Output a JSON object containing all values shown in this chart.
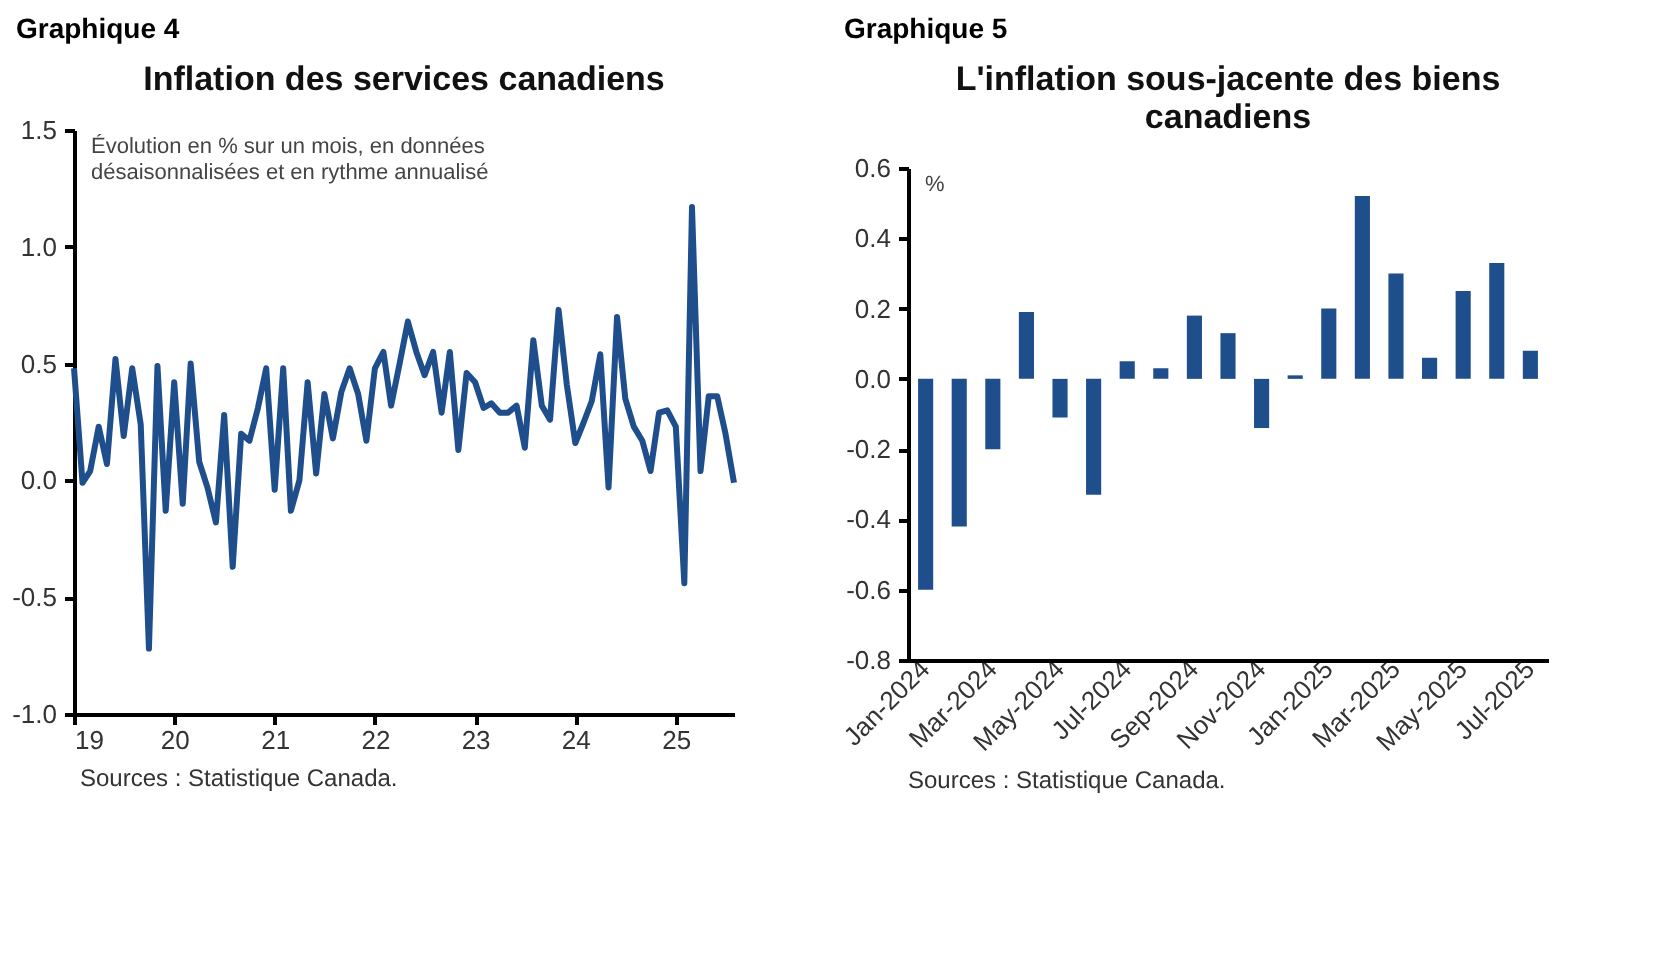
{
  "chart_data": [
    {
      "type": "line",
      "title": "Inflation des services canadiens",
      "ylabel": "Évolution en % sur un mois, en données désaisonnalisées et en rythme annualisé",
      "annotations": [
        "Graphique 4",
        "Sources : Statistique Canada."
      ],
      "x": [
        "2019-01",
        "2019-02",
        "2019-03",
        "2019-04",
        "2019-05",
        "2019-06",
        "2019-07",
        "2019-08",
        "2019-09",
        "2019-10",
        "2019-11",
        "2019-12",
        "2020-01",
        "2020-02",
        "2020-03",
        "2020-04",
        "2020-05",
        "2020-06",
        "2020-07",
        "2020-08",
        "2020-09",
        "2020-10",
        "2020-11",
        "2020-12",
        "2021-01",
        "2021-02",
        "2021-03",
        "2021-04",
        "2021-05",
        "2021-06",
        "2021-07",
        "2021-08",
        "2021-09",
        "2021-10",
        "2021-11",
        "2021-12",
        "2022-01",
        "2022-02",
        "2022-03",
        "2022-04",
        "2022-05",
        "2022-06",
        "2022-07",
        "2022-08",
        "2022-09",
        "2022-10",
        "2022-11",
        "2022-12",
        "2023-01",
        "2023-02",
        "2023-03",
        "2023-04",
        "2023-05",
        "2023-06",
        "2023-07",
        "2023-08",
        "2023-09",
        "2023-10",
        "2023-11",
        "2023-12",
        "2024-01",
        "2024-02",
        "2024-03",
        "2024-04",
        "2024-05",
        "2024-06",
        "2024-07",
        "2024-08",
        "2024-09",
        "2024-10",
        "2024-11",
        "2024-12",
        "2025-01",
        "2025-02",
        "2025-03",
        "2025-04",
        "2025-05",
        "2025-06",
        "2025-07",
        "2025-08"
      ],
      "series": [
        {
          "color": "#1f4e8c",
          "values": [
            0.48,
            -0.01,
            0.04,
            0.23,
            0.07,
            0.52,
            0.19,
            0.48,
            0.24,
            -0.72,
            0.49,
            -0.13,
            0.42,
            -0.1,
            0.5,
            0.08,
            -0.03,
            -0.18,
            0.28,
            -0.37,
            0.2,
            0.17,
            0.31,
            0.48,
            -0.04,
            0.48,
            -0.13,
            0.0,
            0.42,
            0.03,
            0.37,
            0.18,
            0.38,
            0.48,
            0.37,
            0.17,
            0.48,
            0.55,
            0.32,
            0.5,
            0.68,
            0.55,
            0.45,
            0.55,
            0.29,
            0.55,
            0.13,
            0.46,
            0.42,
            0.31,
            0.33,
            0.29,
            0.29,
            0.32,
            0.14,
            0.6,
            0.32,
            0.26,
            0.73,
            0.41,
            0.16,
            0.25,
            0.34,
            0.54,
            -0.03,
            0.7,
            0.35,
            0.23,
            0.17,
            0.04,
            0.29,
            0.3,
            0.23,
            -0.44,
            1.17,
            0.04,
            0.36,
            0.36,
            0.2,
            -0.01
          ]
        }
      ],
      "xlim": [
        "2019-01",
        "2025-08"
      ],
      "xticks": [
        {
          "value": "2019-01",
          "label": "19"
        },
        {
          "value": "2020-01",
          "label": "20"
        },
        {
          "value": "2021-01",
          "label": "21"
        },
        {
          "value": "2022-01",
          "label": "22"
        },
        {
          "value": "2023-01",
          "label": "23"
        },
        {
          "value": "2024-01",
          "label": "24"
        },
        {
          "value": "2025-01",
          "label": "25"
        }
      ],
      "ylim": [
        -1,
        1.5
      ],
      "yticks": [
        {
          "value": -1,
          "label": "-1.0"
        },
        {
          "value": -0.5,
          "label": "-0.5"
        },
        {
          "value": 0,
          "label": "0.0"
        },
        {
          "value": 0.5,
          "label": "0.5"
        },
        {
          "value": 1,
          "label": "1.0"
        },
        {
          "value": 1.5,
          "label": "1.5"
        }
      ],
      "grid": false
    },
    {
      "type": "bar",
      "title": "L'inflation sous-jacente des biens canadiens",
      "ylabel": "%",
      "annotations": [
        "Graphique 5",
        "Sources : Statistique Canada."
      ],
      "categories": [
        "Jan-2024",
        null,
        "Mar-2024",
        null,
        "May-2024",
        null,
        "Jul-2024",
        null,
        "Sep-2024",
        null,
        "Nov-2024",
        null,
        "Jan-2025",
        null,
        "Mar-2025",
        null,
        "May-2025",
        null,
        "Jul-2025"
      ],
      "series": [
        {
          "color": "#1f4e8c",
          "values": [
            -0.6,
            -0.42,
            -0.2,
            0.19,
            -0.11,
            -0.33,
            0.05,
            0.03,
            0.18,
            0.13,
            -0.14,
            0.01,
            0.2,
            0.52,
            0.3,
            0.06,
            0.25,
            0.33,
            0.08
          ]
        }
      ],
      "ylim": [
        -0.8,
        0.6
      ],
      "yticks": [
        {
          "value": -0.8,
          "label": "-0.8"
        },
        {
          "value": -0.6,
          "label": "-0.6"
        },
        {
          "value": -0.4,
          "label": "-0.4"
        },
        {
          "value": -0.2,
          "label": "-0.2"
        },
        {
          "value": 0,
          "label": "0.0"
        },
        {
          "value": 0.2,
          "label": "0.2"
        },
        {
          "value": 0.4,
          "label": "0.4"
        },
        {
          "value": 0.6,
          "label": "0.6"
        }
      ],
      "grid": false
    }
  ]
}
